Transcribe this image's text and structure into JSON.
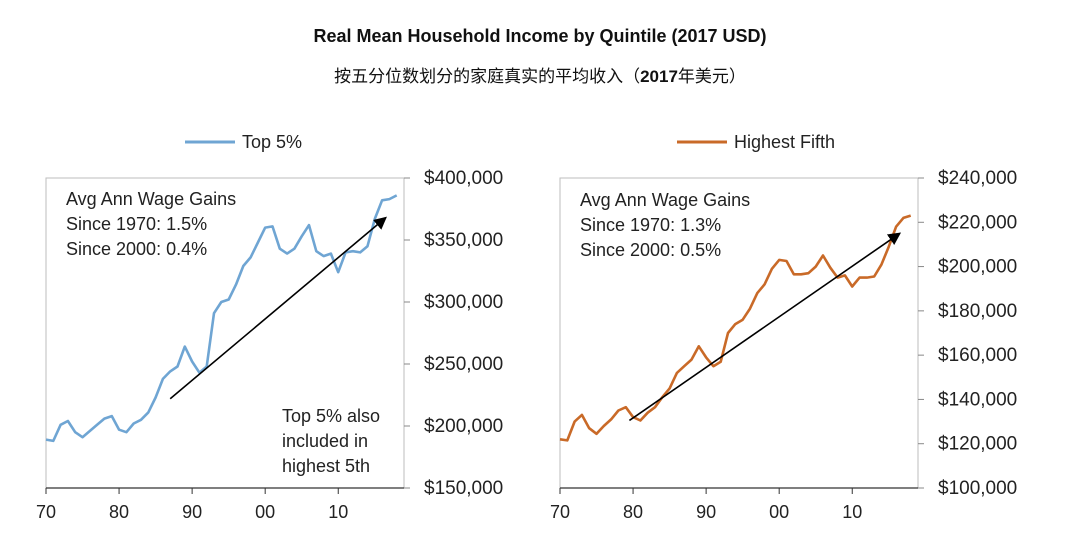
{
  "header": {
    "title": "Real Mean Household Income by Quintile (2017 USD)",
    "subtitle_prefix": "按五分位数划分的家庭真实的平均收入（",
    "subtitle_bold": "2017",
    "subtitle_suffix": "年美元）"
  },
  "chart_data": [
    {
      "type": "line",
      "legend": "Top 5%",
      "color": "#6fa5d3",
      "x_tick_labels": [
        "70",
        "80",
        "90",
        "00",
        "10"
      ],
      "x_ticks": [
        1970,
        1980,
        1990,
        2000,
        2010
      ],
      "xlim": [
        1970,
        2019
      ],
      "ylim": [
        150000,
        400000
      ],
      "y_ticks": [
        150000,
        200000,
        250000,
        300000,
        350000,
        400000
      ],
      "y_tick_labels": [
        "$150,000",
        "$200,000",
        "$250,000",
        "$300,000",
        "$350,000",
        "$400,000"
      ],
      "annotation_lines": [
        "Avg Ann Wage Gains",
        "Since 1970: 1.5%",
        "Since 2000: 0.4%"
      ],
      "note_lines": [
        "Top 5% also",
        "included in",
        "highest 5th"
      ],
      "arrow": {
        "from": [
          1987,
          222000
        ],
        "to": [
          2016.5,
          368000
        ]
      },
      "x": [
        1970,
        1971,
        1972,
        1973,
        1974,
        1975,
        1976,
        1977,
        1978,
        1979,
        1980,
        1981,
        1982,
        1983,
        1984,
        1985,
        1986,
        1987,
        1988,
        1989,
        1990,
        1991,
        1992,
        1993,
        1994,
        1995,
        1996,
        1997,
        1998,
        1999,
        2000,
        2001,
        2002,
        2003,
        2004,
        2005,
        2006,
        2007,
        2008,
        2009,
        2010,
        2011,
        2012,
        2013,
        2014,
        2015,
        2016,
        2017,
        2018
      ],
      "y": [
        189000,
        188000,
        201000,
        204000,
        195000,
        191000,
        196000,
        201000,
        206000,
        208000,
        197000,
        195000,
        202000,
        205000,
        211000,
        223000,
        238000,
        244000,
        248000,
        264000,
        252000,
        243000,
        248000,
        291000,
        300000,
        302000,
        314000,
        329000,
        336000,
        348000,
        360000,
        361000,
        343000,
        339000,
        343000,
        353000,
        362000,
        341000,
        337000,
        339000,
        324000,
        340000,
        341000,
        340000,
        345000,
        367000,
        382000,
        383000,
        386000
      ]
    },
    {
      "type": "line",
      "legend": "Highest Fifth",
      "color": "#c96a28",
      "x_tick_labels": [
        "70",
        "80",
        "90",
        "00",
        "10"
      ],
      "x_ticks": [
        1970,
        1980,
        1990,
        2000,
        2010
      ],
      "xlim": [
        1970,
        2019
      ],
      "ylim": [
        100000,
        240000
      ],
      "y_ticks": [
        100000,
        120000,
        140000,
        160000,
        180000,
        200000,
        220000,
        240000
      ],
      "y_tick_labels": [
        "$100,000",
        "$120,000",
        "$140,000",
        "$160,000",
        "$180,000",
        "$200,000",
        "$220,000",
        "$240,000"
      ],
      "annotation_lines": [
        "Avg Ann Wage Gains",
        "Since 1970: 1.3%",
        "Since 2000: 0.5%"
      ],
      "arrow": {
        "from": [
          1979.5,
          130500
        ],
        "to": [
          2016.5,
          215000
        ]
      },
      "x": [
        1970,
        1971,
        1972,
        1973,
        1974,
        1975,
        1976,
        1977,
        1978,
        1979,
        1980,
        1981,
        1982,
        1983,
        1984,
        1985,
        1986,
        1987,
        1988,
        1989,
        1990,
        1991,
        1992,
        1993,
        1994,
        1995,
        1996,
        1997,
        1998,
        1999,
        2000,
        2001,
        2002,
        2003,
        2004,
        2005,
        2006,
        2007,
        2008,
        2009,
        2010,
        2011,
        2012,
        2013,
        2014,
        2015,
        2016,
        2017,
        2018
      ],
      "y": [
        122000,
        121500,
        130000,
        133000,
        127000,
        124500,
        128000,
        131000,
        135000,
        136500,
        132000,
        130500,
        134000,
        136500,
        141000,
        145000,
        152000,
        155000,
        158000,
        164000,
        159000,
        155000,
        157000,
        170000,
        174000,
        176000,
        181000,
        188000,
        192000,
        199000,
        203000,
        202500,
        196500,
        196500,
        197000,
        200000,
        205000,
        199500,
        195000,
        196000,
        191000,
        195000,
        195000,
        195500,
        201000,
        209000,
        218000,
        222000,
        223000
      ]
    }
  ]
}
